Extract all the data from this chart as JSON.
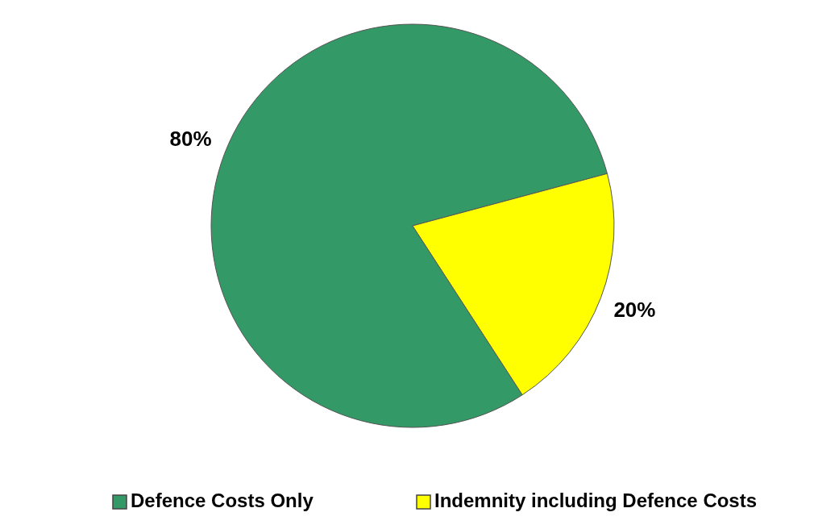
{
  "chart_data": {
    "type": "pie",
    "categories": [
      "Defence Costs Only",
      "Indemnity including Defence Costs"
    ],
    "values": [
      80,
      20
    ],
    "value_labels": [
      "80%",
      "20%"
    ],
    "colors": [
      "#339966",
      "#ffff00"
    ],
    "legend": "bottom"
  }
}
